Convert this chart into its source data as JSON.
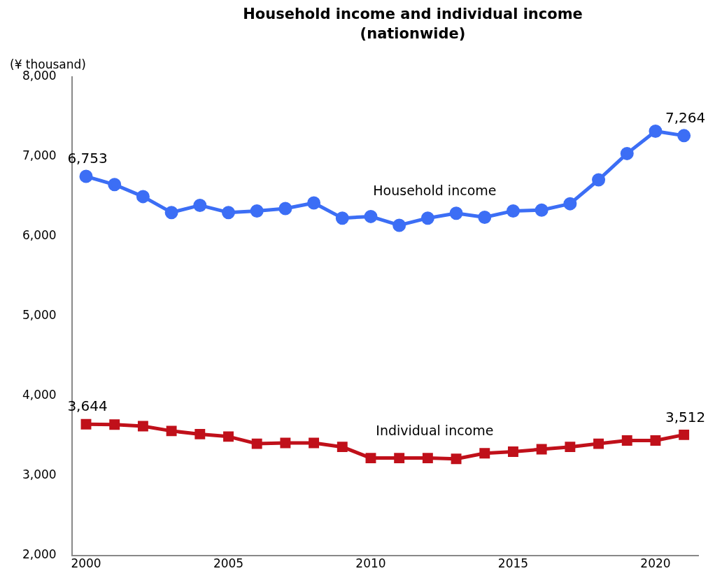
{
  "chart_data": {
    "type": "line",
    "title": "Household income and individual income (nationwide)",
    "ylabel": "(¥ thousand)",
    "x": [
      2000,
      2001,
      2002,
      2003,
      2004,
      2005,
      2006,
      2007,
      2008,
      2009,
      2010,
      2011,
      2012,
      2013,
      2014,
      2015,
      2016,
      2017,
      2018,
      2019,
      2020,
      2021
    ],
    "xlim": [
      1999.5,
      2021.5
    ],
    "xticks": [
      2000,
      2005,
      2010,
      2015,
      2020
    ],
    "ylim": [
      2000,
      8000
    ],
    "yticks": [
      {
        "value": 2000,
        "label": "2,000"
      },
      {
        "value": 3000,
        "label": "3,000"
      },
      {
        "value": 4000,
        "label": "4,000"
      },
      {
        "value": 5000,
        "label": "5,000"
      },
      {
        "value": 6000,
        "label": "6,000"
      },
      {
        "value": 7000,
        "label": "7,000"
      },
      {
        "value": 8000,
        "label": "8,000"
      }
    ],
    "grid": false,
    "legend": false,
    "line_style": "solid",
    "series": [
      {
        "name": "Household income",
        "color": "#3c6ef5",
        "marker": "circle",
        "values": [
          6753,
          6650,
          6500,
          6300,
          6390,
          6300,
          6320,
          6350,
          6420,
          6230,
          6250,
          6140,
          6230,
          6290,
          6240,
          6320,
          6330,
          6410,
          6710,
          7040,
          7320,
          7264
        ],
        "value_labels": [
          "6,753",
          null,
          null,
          null,
          null,
          null,
          null,
          null,
          null,
          null,
          null,
          null,
          null,
          null,
          null,
          null,
          null,
          null,
          null,
          null,
          null,
          "7,264"
        ]
      },
      {
        "name": "Individual income",
        "color": "#c0101a",
        "marker": "square",
        "values": [
          3644,
          3640,
          3620,
          3560,
          3520,
          3490,
          3400,
          3410,
          3410,
          3360,
          3220,
          3220,
          3220,
          3210,
          3280,
          3300,
          3330,
          3360,
          3400,
          3440,
          3440,
          3512
        ],
        "value_labels": [
          "3,644",
          null,
          null,
          null,
          null,
          null,
          null,
          null,
          null,
          null,
          null,
          null,
          null,
          null,
          null,
          null,
          null,
          null,
          null,
          null,
          null,
          "3,512"
        ]
      }
    ]
  }
}
